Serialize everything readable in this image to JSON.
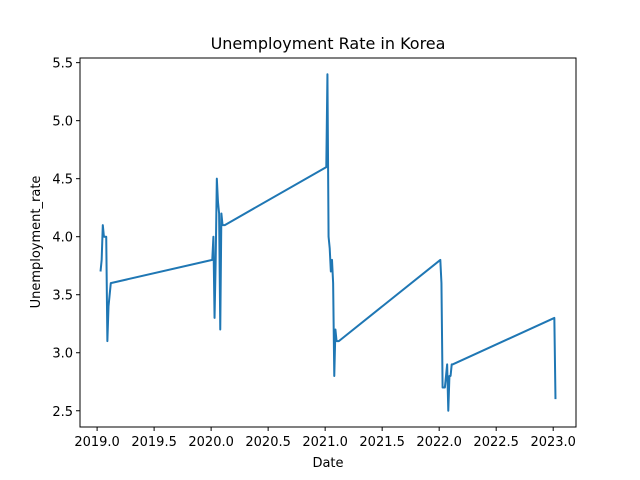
{
  "chart_data": {
    "type": "line",
    "title": "Unemployment Rate in Korea",
    "xlabel": "Date",
    "ylabel": "Unemployment_rate",
    "xlim": [
      2018.85,
      2023.2
    ],
    "ylim": [
      2.36,
      5.54
    ],
    "xticks": [
      2019.0,
      2019.5,
      2020.0,
      2020.5,
      2021.0,
      2021.5,
      2022.0,
      2022.5,
      2023.0
    ],
    "xtick_labels": [
      "2019.0",
      "2019.5",
      "2020.0",
      "2020.5",
      "2021.0",
      "2021.5",
      "2022.0",
      "2022.5",
      "2023.0"
    ],
    "yticks": [
      2.5,
      3.0,
      3.5,
      4.0,
      4.5,
      5.0,
      5.5
    ],
    "ytick_labels": [
      "2.5",
      "3.0",
      "3.5",
      "4.0",
      "4.5",
      "5.0",
      "5.5"
    ],
    "grid": false,
    "series": [
      {
        "color": "#1f77b4",
        "x": [
          2019.03,
          2019.04,
          2019.05,
          2019.06,
          2019.07,
          2019.08,
          2019.09,
          2019.1,
          2019.11,
          2019.12,
          2020.01,
          2020.02,
          2020.03,
          2020.04,
          2020.05,
          2020.06,
          2020.07,
          2020.08,
          2020.09,
          2020.1,
          2020.11,
          2020.12,
          2021.01,
          2021.02,
          2021.03,
          2021.04,
          2021.05,
          2021.06,
          2021.07,
          2021.08,
          2021.09,
          2021.1,
          2021.11,
          2021.12,
          2022.01,
          2022.02,
          2022.03,
          2022.04,
          2022.05,
          2022.06,
          2022.07,
          2022.08,
          2022.09,
          2022.1,
          2022.11,
          2022.12,
          2023.01,
          2023.02
        ],
        "y": [
          3.7,
          3.8,
          4.1,
          4.0,
          4.0,
          4.0,
          3.1,
          3.4,
          3.5,
          3.6,
          3.8,
          4.0,
          3.3,
          3.8,
          4.5,
          4.3,
          4.2,
          3.2,
          4.2,
          4.1,
          4.1,
          4.1,
          4.6,
          5.4,
          4.0,
          3.9,
          3.7,
          3.8,
          3.6,
          2.8,
          3.2,
          3.1,
          3.1,
          3.1,
          3.8,
          3.6,
          2.7,
          2.7,
          2.7,
          2.8,
          2.9,
          2.5,
          2.8,
          2.8,
          2.9,
          2.9,
          3.3,
          2.6
        ]
      }
    ]
  }
}
